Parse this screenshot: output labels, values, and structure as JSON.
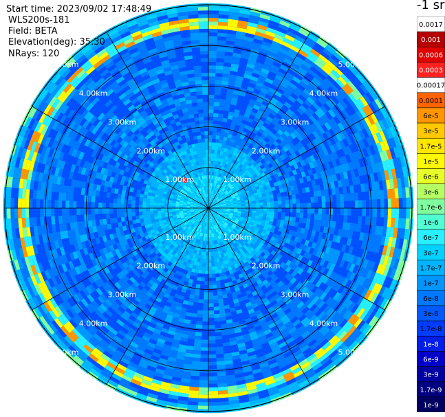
{
  "header": {
    "start_time": "Start time: 2023/09/02 17:48:49",
    "device": "WLS200s-181",
    "field": "Field: BETA",
    "elevation": "Elevation(deg): 35.30",
    "nrays": "NRays: 120"
  },
  "colorbar": {
    "title": "-1 sr",
    "labels": [
      "0.0017",
      "0.001",
      "0.0006",
      "0.0003",
      "0.00017",
      "0.0001",
      "6e-5",
      "3e-5",
      "1.7e-5",
      "1e-5",
      "6e-6",
      "3e-6",
      "1.7e-6",
      "1e-6",
      "6e-7",
      "3e-7",
      "1.7e-7",
      "1e-7",
      "6e-8",
      "3e-8",
      "1.7e-8",
      "1e-8",
      "6e-9",
      "3e-9",
      "1.7e-9",
      "1e-9"
    ],
    "colors": [
      "#ffffff",
      "#b40000",
      "#e00000",
      "#ff2020",
      "#ffffff",
      "#ff6400",
      "#ff9600",
      "#ffc800",
      "#ffe600",
      "#fffa00",
      "#e6ff28",
      "#b4ff64",
      "#80ffa0",
      "#50ffd2",
      "#28f0ff",
      "#00d2ff",
      "#00b4ff",
      "#0096ff",
      "#0078ff",
      "#005aff",
      "#003cff",
      "#001ee6",
      "#0000c8",
      "#0000a0",
      "#000080",
      "#000060"
    ]
  },
  "chart_data": {
    "type": "heatmap",
    "projection": "polar (PPI scan)",
    "field": "BETA",
    "unit": "-1 sr",
    "range_rings_km": [
      1,
      2,
      3,
      4,
      5
    ],
    "range_labels": [
      "1.00km",
      "2.00km",
      "3.00km",
      "4.00km",
      "5.00km"
    ],
    "max_range_km": 5.0,
    "n_rays": 120,
    "spoke_angles_deg": [
      0,
      30,
      60,
      90,
      120,
      150,
      180,
      210,
      240,
      270,
      300,
      330
    ],
    "dominant_value": "1e-7",
    "features": [
      {
        "description": "high backscatter ring",
        "range_km": 4.5,
        "value": "1e-5"
      },
      {
        "description": "hot spot",
        "range_km": 0.9,
        "azimuth_deg": 320,
        "value": "0.0003"
      }
    ]
  }
}
